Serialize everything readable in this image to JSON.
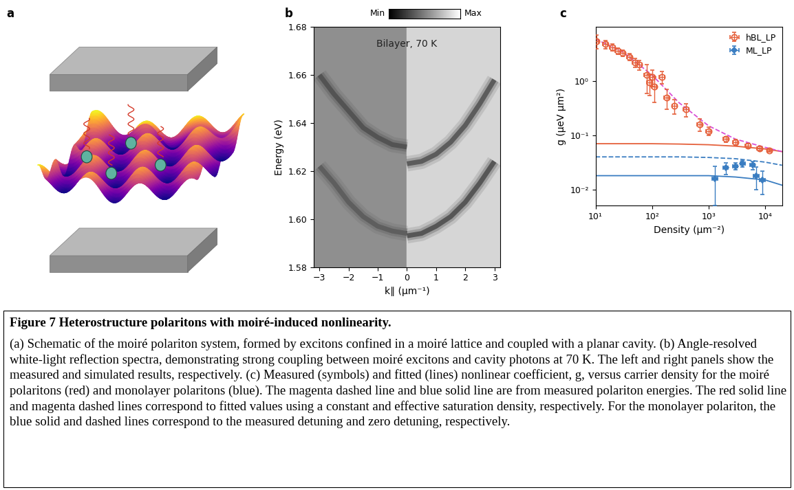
{
  "panel_a": {
    "panel_label": "a"
  },
  "chart_data": [
    {
      "type": "line",
      "panel_label": "b",
      "text": "Bilayer, 70 K",
      "colorbar_labels": [
        "Min",
        "Max"
      ],
      "x_label": "k∥ (μm⁻¹)",
      "y_label": "Energy (eV)",
      "xlim": [
        -3.2,
        3.2
      ],
      "xticks": [
        {
          "value": -3,
          "label": "−3"
        },
        {
          "value": -2,
          "label": "−2"
        },
        {
          "value": -1,
          "label": "−1"
        },
        0,
        1,
        2,
        3
      ],
      "ylim": [
        1.58,
        1.68
      ],
      "yticks": [
        1.58,
        {
          "value": 1.6,
          "label": "1.60"
        },
        1.62,
        1.64,
        1.66,
        1.68
      ],
      "series": [
        {
          "color": "#4a4a4a",
          "x": [
            -3,
            -2.5,
            -2,
            -1.5,
            -1,
            -0.5,
            0
          ],
          "values": [
            1.622,
            1.615,
            1.607,
            1.601,
            1.597,
            1.595,
            1.594
          ]
        },
        {
          "color": "#3a3a3a",
          "x": [
            -3,
            -2.5,
            -2,
            -1.5,
            -1,
            -0.5,
            0
          ],
          "values": [
            1.66,
            1.652,
            1.645,
            1.638,
            1.634,
            1.631,
            1.63
          ]
        },
        {
          "color": "#1e1e1e",
          "x": [
            0,
            0.5,
            1,
            1.5,
            2,
            2.5,
            3
          ],
          "values": [
            1.593,
            1.594,
            1.597,
            1.601,
            1.607,
            1.615,
            1.624
          ]
        },
        {
          "color": "#262626",
          "x": [
            0,
            0.5,
            1,
            1.5,
            2,
            2.5,
            3
          ],
          "values": [
            1.623,
            1.624,
            1.627,
            1.632,
            1.639,
            1.648,
            1.658
          ]
        }
      ]
    },
    {
      "type": "scatter",
      "panel_label": "c",
      "log": true,
      "legend": "upper right",
      "x_label": "Density (μm⁻²)",
      "y_label": "g (μeV μm²)",
      "xlim": [
        10,
        20000
      ],
      "xticks": [
        {
          "value": 10,
          "label": "10¹"
        },
        {
          "value": 100,
          "label": "10²"
        },
        {
          "value": 1000,
          "label": "10³"
        },
        {
          "value": 10000,
          "label": "10⁴"
        }
      ],
      "ylim": [
        0.005,
        10
      ],
      "yticks": [
        {
          "value": 0.01,
          "label": "10⁻²"
        },
        {
          "value": 0.1,
          "label": "10⁻¹"
        },
        {
          "value": 1,
          "label": "10⁰"
        }
      ],
      "series": [
        {
          "name": "hBL_LP",
          "type": "scatter",
          "marker": "circle",
          "color": "#e5603b",
          "x": [
            10.5,
            15,
            20,
            25,
            30,
            40,
            50,
            60,
            80,
            90,
            100,
            110,
            150,
            180,
            250,
            400,
            700,
            1000,
            2000,
            3000,
            5000,
            8000,
            12000
          ],
          "values": [
            5.5,
            4.8,
            4.2,
            3.6,
            3.3,
            2.8,
            2.2,
            2.0,
            1.3,
            0.95,
            1.2,
            0.8,
            1.2,
            0.5,
            0.35,
            0.3,
            0.16,
            0.12,
            0.085,
            0.075,
            0.065,
            0.058,
            0.053
          ],
          "yerr": [
            1.5,
            0.8,
            0.6,
            0.5,
            0.4,
            0.4,
            0.4,
            0.4,
            0.7,
            0.4,
            0.4,
            0.4,
            0.3,
            0.2,
            0.1,
            0.08,
            0.04,
            0.02,
            0.01,
            0.008,
            0.006,
            0.005,
            0.004
          ],
          "xerr": [
            1,
            1.5,
            2,
            2.5,
            3,
            4,
            5,
            6,
            8,
            9,
            10,
            11,
            15,
            18,
            25,
            40,
            70,
            100,
            200,
            300,
            500,
            800,
            1200
          ]
        },
        {
          "name": "ML_LP",
          "type": "scatter",
          "marker": "diamond",
          "color": "#3a7dc1",
          "x": [
            1300,
            2000,
            3000,
            4000,
            6000,
            7000,
            9000
          ],
          "values": [
            0.016,
            0.025,
            0.027,
            0.03,
            0.028,
            0.018,
            0.015
          ],
          "yerr": [
            0.011,
            0.006,
            0.004,
            0.004,
            0.005,
            0.008,
            0.007
          ],
          "xerr": [
            130,
            200,
            300,
            400,
            600,
            700,
            900
          ]
        },
        {
          "type": "line",
          "line_style": "solid",
          "color": "#e5603b",
          "x": [
            10,
            30,
            100,
            300,
            1000,
            3000,
            10000,
            20000
          ],
          "values": [
            0.07,
            0.07,
            0.07,
            0.069,
            0.067,
            0.063,
            0.056,
            0.05
          ]
        },
        {
          "type": "line",
          "line_style": "dashed",
          "color": "#d94fd6",
          "x": [
            10,
            30,
            100,
            300,
            1000,
            3000,
            10000,
            20000
          ],
          "values": [
            6,
            3.5,
            1.3,
            0.4,
            0.15,
            0.085,
            0.06,
            0.05
          ]
        },
        {
          "type": "line",
          "line_style": "dashed",
          "color": "#3a7dc1",
          "x": [
            10,
            30,
            100,
            300,
            1000,
            3000,
            10000,
            20000
          ],
          "values": [
            0.04,
            0.04,
            0.04,
            0.04,
            0.039,
            0.037,
            0.032,
            0.028
          ]
        },
        {
          "type": "line",
          "line_style": "solid",
          "color": "#3a7dc1",
          "x": [
            10,
            30,
            100,
            300,
            1000,
            3000,
            10000,
            20000
          ],
          "values": [
            0.018,
            0.018,
            0.018,
            0.018,
            0.018,
            0.017,
            0.015,
            0.012
          ]
        }
      ]
    }
  ],
  "caption": {
    "title": "Figure 7 Heterostructure polaritons with moiré-induced nonlinearity.",
    "text": "(a) Schematic of the moiré polariton system, formed by excitons confined in a moiré lattice and coupled with a planar cavity. (b) Angle-resolved white-light reflection spectra, demonstrating strong coupling between moiré excitons and cavity photons at 70 K. The left and right panels show the measured and simulated results, respectively. (c) Measured (symbols) and fitted (lines) nonlinear coefficient, g, versus carrier density for the moiré polaritons (red) and monolayer polaritons (blue). The magenta dashed line and blue solid line are from measured polariton energies. The red solid line and magenta dashed lines correspond to fitted values using a constant and effective saturation density, respectively. For the monolayer polariton, the blue solid and dashed lines correspond to the measured detuning and zero detuning, respectively."
  }
}
